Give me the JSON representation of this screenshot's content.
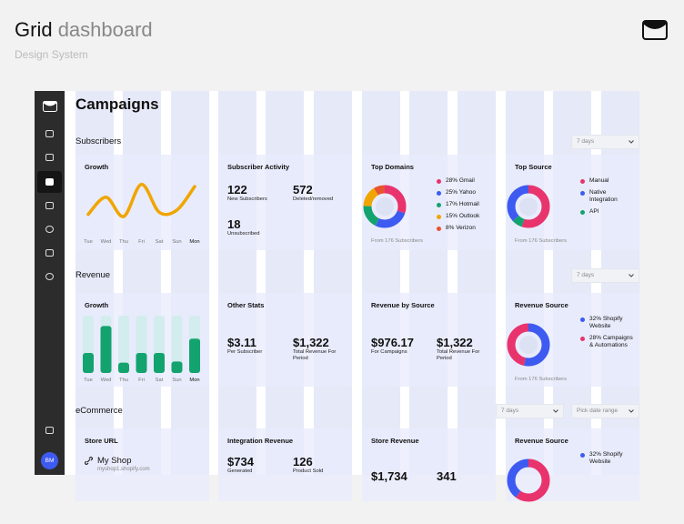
{
  "header": {
    "title": "Grid",
    "title_light": "dashboard",
    "subtitle": "Design System"
  },
  "sidebar": {
    "avatar": "BM"
  },
  "page_title": "Campaigns",
  "subscribers": {
    "title": "Subscribers",
    "filter": "7 days",
    "growth": {
      "title": "Growth",
      "type": "line",
      "color": "#f0a500",
      "categories": [
        "Tue",
        "Wed",
        "Thu",
        "Fri",
        "Sat",
        "Sun",
        "Mon"
      ],
      "values": [
        20,
        60,
        15,
        90,
        25,
        30,
        85
      ],
      "ylim": [
        0,
        100
      ]
    },
    "activity": {
      "title": "Subscriber Activity",
      "stats": [
        {
          "value": "122",
          "label": "New Subscribers"
        },
        {
          "value": "572",
          "label": "Deleted/removed"
        },
        {
          "value": "18",
          "label": "Unsubscribed"
        }
      ]
    },
    "top_domains": {
      "title": "Top Domains",
      "type": "donut",
      "items": [
        {
          "value": 28,
          "label": "28% Gmail",
          "color": "#e8336d"
        },
        {
          "value": 25,
          "label": "25% Yahoo",
          "color": "#3d5af1"
        },
        {
          "value": 17,
          "label": "17% Hotmail",
          "color": "#13a36f"
        },
        {
          "value": 15,
          "label": "15% Outlook",
          "color": "#f0a500"
        },
        {
          "value": 8,
          "label": "8% Verizon",
          "color": "#e8542f"
        }
      ],
      "footer": "From 176 Subscribers"
    },
    "top_source": {
      "title": "Top Source",
      "legend": [
        {
          "label": "Manual",
          "color": "#e8336d"
        },
        {
          "label": "Native Integration",
          "color": "#3d5af1"
        },
        {
          "label": "API",
          "color": "#13a36f"
        }
      ],
      "footer": "From 176 Subscribers"
    }
  },
  "revenue": {
    "title": "Revenue",
    "filter": "7 days",
    "growth": {
      "title": "Growth",
      "type": "bar",
      "color": "#13a36f",
      "track_color": "#d3ecee",
      "categories": [
        "Tue",
        "Wed",
        "Thu",
        "Fri",
        "Sat",
        "Sun",
        "Mon"
      ],
      "values": [
        35,
        82,
        18,
        35,
        35,
        20,
        60
      ],
      "ylim": [
        0,
        100
      ]
    },
    "other_stats": {
      "title": "Other Stats",
      "stats": [
        {
          "value": "$3.11",
          "label": "Per Subscriber"
        },
        {
          "value": "$1,322",
          "label": "Total Revenue For Period"
        }
      ]
    },
    "by_source": {
      "title": "Revenue by Source",
      "stats": [
        {
          "value": "$976.17",
          "label": "For Campaigns"
        },
        {
          "value": "$1,322",
          "label": "Total Revenue For Period"
        }
      ]
    },
    "source": {
      "title": "Revenue Source",
      "type": "donut",
      "items": [
        {
          "value": 32,
          "label": "32% Shopify Website",
          "color": "#3d5af1"
        },
        {
          "value": 28,
          "label": "28% Campaigns & Automations",
          "color": "#e8336d"
        }
      ],
      "footer": "From 176 Subscribers"
    }
  },
  "ecommerce": {
    "title": "eCommerce",
    "filter": "7 days",
    "date_filter": "Pick date range",
    "store_url": {
      "title": "Store URL",
      "name": "My Shop",
      "url": "myshop1.shopify.com"
    },
    "integration_revenue": {
      "title": "Integration Revenue",
      "stats": [
        {
          "value": "$734",
          "label": "Generated"
        },
        {
          "value": "126",
          "label": "Product Sold"
        }
      ]
    },
    "store_revenue": {
      "title": "Store Revenue",
      "stats": [
        {
          "value": "$1,734"
        },
        {
          "value": "341"
        }
      ]
    },
    "revenue_source": {
      "title": "Revenue Source",
      "legend": [
        {
          "label": "32% Shopify Website",
          "color": "#3d5af1"
        }
      ]
    }
  }
}
